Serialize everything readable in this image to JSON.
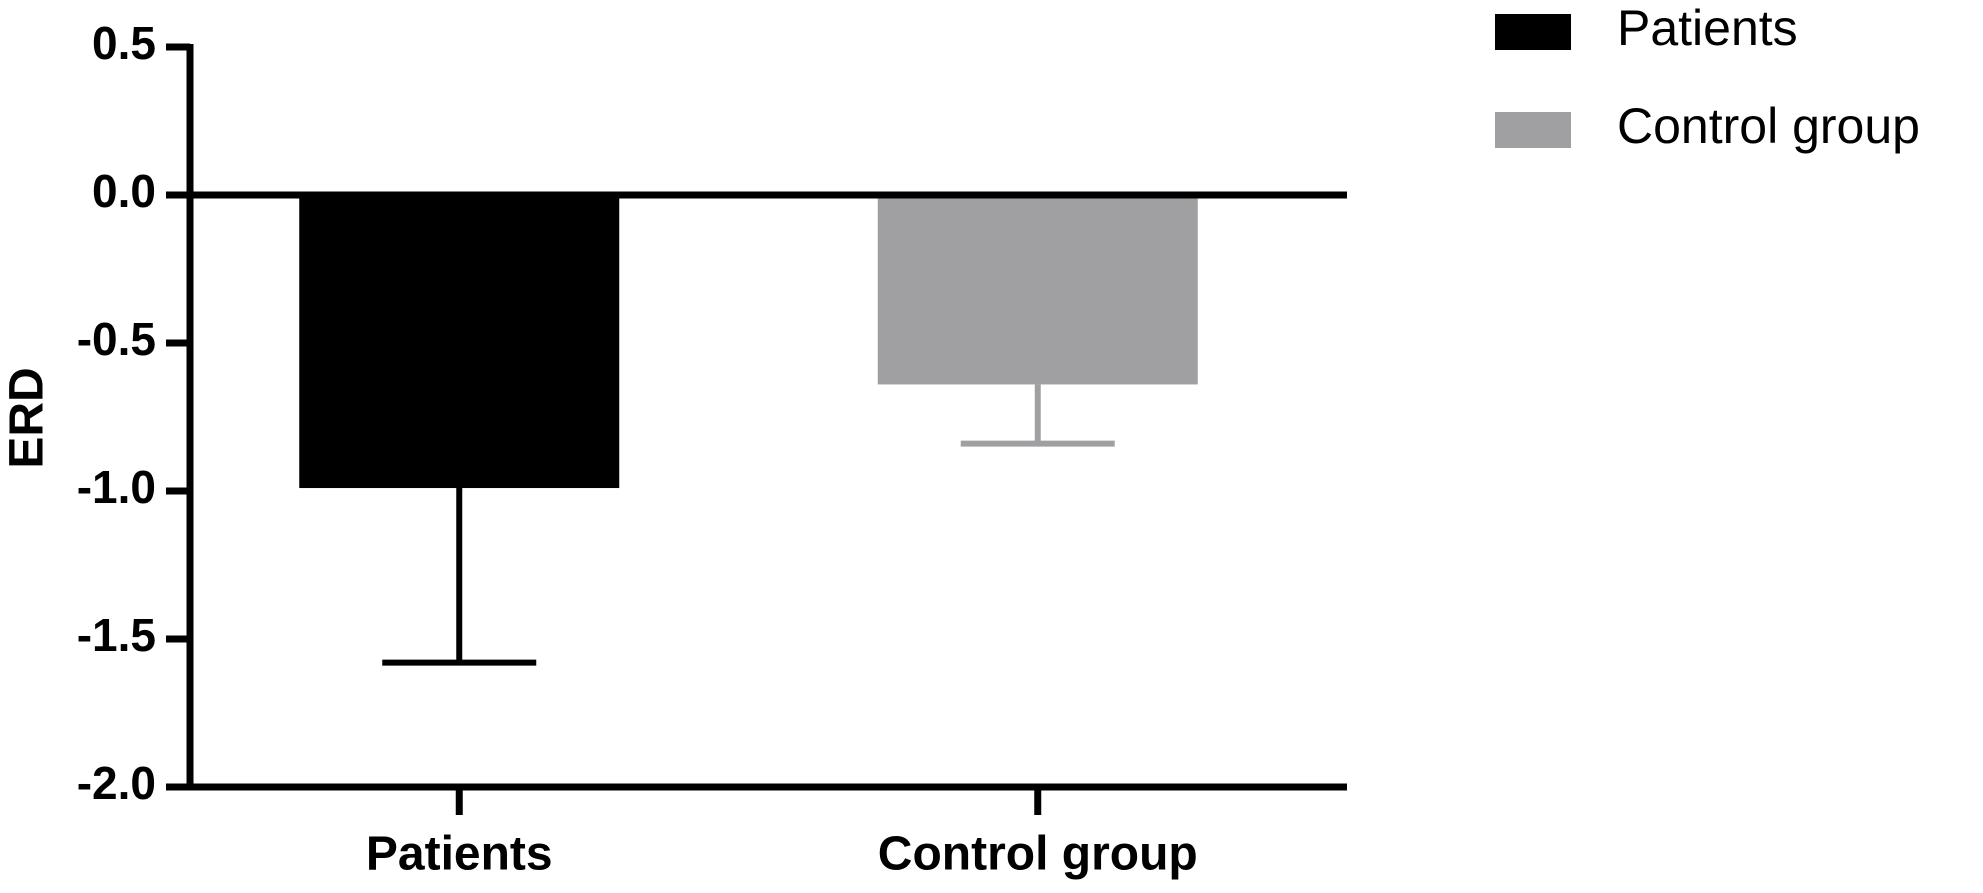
{
  "chart_data": {
    "type": "bar",
    "y_label": "ERD",
    "categories": [
      "Patients",
      "Control group"
    ],
    "series": [
      {
        "name": "Patients",
        "color": "#000000",
        "values": [
          -0.99,
          null
        ],
        "errors": [
          0.59,
          null
        ]
      },
      {
        "name": "Control group",
        "color": "#a0a0a3",
        "values": [
          null,
          -0.64
        ],
        "errors": [
          null,
          0.2
        ]
      }
    ],
    "ylim": [
      -2.0,
      0.5
    ],
    "yticks": [
      {
        "value": 0.5,
        "label": "0.5"
      },
      {
        "value": 0.0,
        "label": "0.0"
      },
      {
        "value": -0.5,
        "label": "-0.5"
      },
      {
        "value": -1.0,
        "label": "-1.0"
      },
      {
        "value": -1.5,
        "label": "-1.5"
      },
      {
        "value": -2.0,
        "label": "-2.0"
      }
    ],
    "grid": false
  }
}
